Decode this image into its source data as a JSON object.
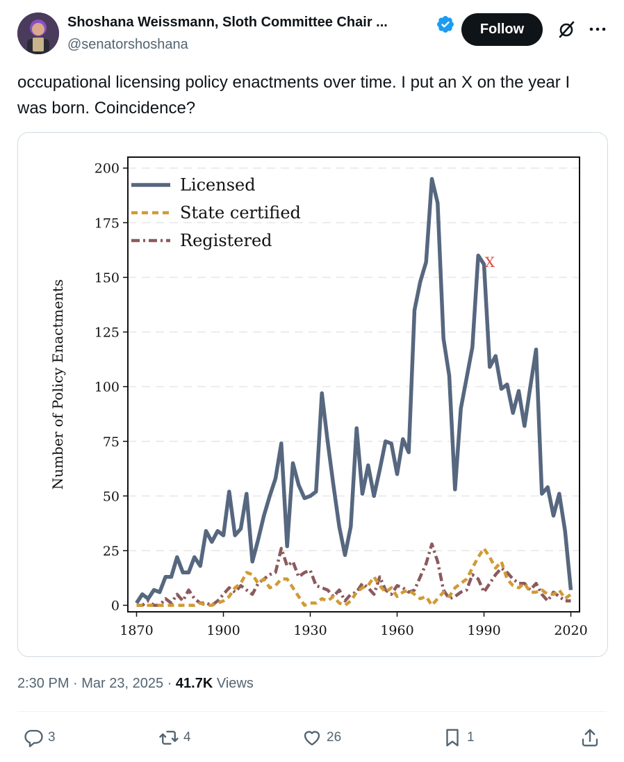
{
  "author": {
    "name": "Shoshana Weissmann, Sloth Committee Chair ...",
    "handle": "@senatorshoshana",
    "follow_label": "Follow"
  },
  "tweet": {
    "text": "occupational licensing policy enactments over time. I put an X on the year I was born. Coincidence?"
  },
  "meta": {
    "time": "2:30 PM",
    "separator1": " · ",
    "date": "Mar 23, 2025",
    "separator2": " · ",
    "views_count": "41.7K",
    "views_label": " Views"
  },
  "actions": {
    "replies": "3",
    "reposts": "4",
    "likes": "26",
    "bookmarks": "1"
  },
  "icons": [
    "verified-badge-icon",
    "grok-icon",
    "more-icon",
    "reply-icon",
    "repost-icon",
    "like-icon",
    "bookmark-icon",
    "share-icon"
  ],
  "colors": {
    "accent": "#1d9bf0",
    "licensed": "#56677f",
    "state_certified": "#d19a35",
    "registered": "#8b5a5e",
    "annotation": "#e0473a"
  },
  "chart_data": {
    "type": "line",
    "title": "",
    "xlabel": "",
    "ylabel": "Number of Policy Enactments",
    "xlim": [
      1867,
      2023
    ],
    "ylim": [
      -3,
      205
    ],
    "xticks": [
      1870,
      1900,
      1930,
      1960,
      1990,
      2020
    ],
    "yticks": [
      0,
      25,
      50,
      75,
      100,
      125,
      150,
      175,
      200
    ],
    "grid": "horizontal dashed",
    "legend": "top-left",
    "annotation": {
      "text": "X",
      "x": 1992,
      "y": 157
    },
    "series": [
      {
        "name": "Licensed",
        "style": "solid",
        "x": [
          1870,
          1872,
          1874,
          1876,
          1878,
          1880,
          1882,
          1884,
          1886,
          1888,
          1890,
          1892,
          1894,
          1896,
          1898,
          1900,
          1902,
          1904,
          1906,
          1908,
          1910,
          1912,
          1914,
          1916,
          1918,
          1920,
          1922,
          1924,
          1926,
          1928,
          1930,
          1932,
          1934,
          1936,
          1938,
          1940,
          1942,
          1944,
          1946,
          1948,
          1950,
          1952,
          1954,
          1956,
          1958,
          1960,
          1962,
          1964,
          1966,
          1968,
          1970,
          1972,
          1974,
          1976,
          1978,
          1980,
          1982,
          1984,
          1986,
          1988,
          1990,
          1992,
          1994,
          1996,
          1998,
          2000,
          2002,
          2004,
          2006,
          2008,
          2010,
          2012,
          2014,
          2016,
          2018,
          2020
        ],
        "values": [
          1,
          5,
          3,
          7,
          6,
          13,
          13,
          22,
          15,
          15,
          22,
          18,
          34,
          29,
          34,
          32,
          52,
          32,
          35,
          51,
          20,
          30,
          41,
          50,
          58,
          74,
          27,
          65,
          55,
          49,
          50,
          52,
          97,
          75,
          55,
          36,
          23,
          36,
          81,
          51,
          64,
          50,
          62,
          75,
          74,
          60,
          76,
          70,
          135,
          148,
          157,
          195,
          184,
          122,
          105,
          53,
          90,
          104,
          118,
          160,
          156,
          109,
          114,
          99,
          101,
          88,
          98,
          82,
          100,
          117,
          51,
          54,
          41,
          51,
          34,
          7
        ]
      },
      {
        "name": "State certified",
        "style": "dashed",
        "x": [
          1870,
          1872,
          1874,
          1876,
          1878,
          1880,
          1882,
          1884,
          1886,
          1888,
          1890,
          1892,
          1894,
          1896,
          1898,
          1900,
          1902,
          1904,
          1906,
          1908,
          1910,
          1912,
          1914,
          1916,
          1918,
          1920,
          1922,
          1924,
          1926,
          1928,
          1930,
          1932,
          1934,
          1936,
          1938,
          1940,
          1942,
          1944,
          1946,
          1948,
          1950,
          1952,
          1954,
          1956,
          1958,
          1960,
          1962,
          1964,
          1966,
          1968,
          1970,
          1972,
          1974,
          1976,
          1978,
          1980,
          1982,
          1984,
          1986,
          1988,
          1990,
          1992,
          1994,
          1996,
          1998,
          2000,
          2002,
          2004,
          2006,
          2008,
          2010,
          2012,
          2014,
          2016,
          2018,
          2020
        ],
        "values": [
          0,
          0,
          0,
          0,
          0,
          0,
          0,
          0,
          0,
          0,
          0,
          1,
          0,
          0,
          1,
          2,
          4,
          8,
          10,
          15,
          14,
          10,
          12,
          8,
          9,
          12,
          12,
          8,
          4,
          0,
          1,
          1,
          3,
          2,
          4,
          1,
          0,
          2,
          6,
          8,
          9,
          13,
          9,
          6,
          8,
          4,
          6,
          7,
          5,
          3,
          4,
          0,
          3,
          6,
          4,
          8,
          10,
          12,
          17,
          22,
          26,
          22,
          17,
          20,
          12,
          9,
          8,
          10,
          6,
          6,
          7,
          5,
          5,
          7,
          3,
          5
        ]
      },
      {
        "name": "Registered",
        "style": "dashdot",
        "x": [
          1870,
          1872,
          1874,
          1876,
          1878,
          1880,
          1882,
          1884,
          1886,
          1888,
          1890,
          1892,
          1894,
          1896,
          1898,
          1900,
          1902,
          1904,
          1906,
          1908,
          1910,
          1912,
          1914,
          1916,
          1918,
          1920,
          1922,
          1924,
          1926,
          1928,
          1930,
          1932,
          1934,
          1936,
          1938,
          1940,
          1942,
          1944,
          1946,
          1948,
          1950,
          1952,
          1954,
          1956,
          1958,
          1960,
          1962,
          1964,
          1966,
          1968,
          1970,
          1972,
          1974,
          1976,
          1978,
          1980,
          1982,
          1984,
          1986,
          1988,
          1990,
          1992,
          1994,
          1996,
          1998,
          2000,
          2002,
          2004,
          2006,
          2008,
          2010,
          2012,
          2014,
          2016,
          2018,
          2020
        ],
        "values": [
          0,
          0,
          2,
          0,
          0,
          3,
          1,
          5,
          2,
          7,
          3,
          1,
          1,
          0,
          2,
          5,
          8,
          6,
          9,
          7,
          5,
          10,
          12,
          14,
          15,
          26,
          18,
          20,
          13,
          15,
          16,
          9,
          8,
          7,
          4,
          7,
          2,
          5,
          6,
          10,
          8,
          5,
          13,
          7,
          5,
          9,
          8,
          6,
          7,
          13,
          19,
          28,
          20,
          7,
          3,
          4,
          6,
          7,
          14,
          12,
          6,
          10,
          14,
          17,
          15,
          12,
          10,
          10,
          7,
          10,
          5,
          2,
          6,
          4,
          2,
          2
        ]
      }
    ],
    "xtick_labels": [
      "1870",
      "1900",
      "1930",
      "1960",
      "1990",
      "2020"
    ],
    "ytick_labels": [
      "0",
      "25",
      "50",
      "75",
      "100",
      "125",
      "150",
      "175",
      "200"
    ]
  }
}
